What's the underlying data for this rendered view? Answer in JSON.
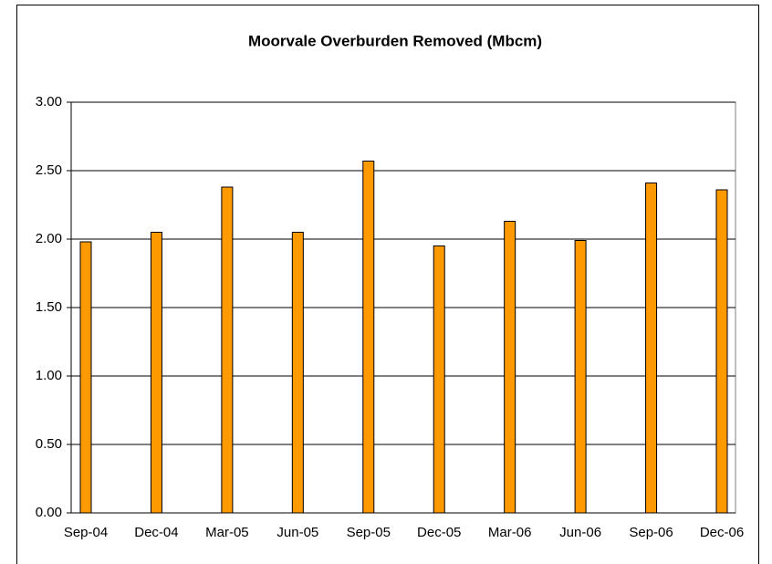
{
  "chart_data": {
    "type": "bar",
    "title": "Moorvale Overburden Removed (Mbcm)",
    "categories": [
      "Sep-04",
      "Dec-04",
      "Mar-05",
      "Jun-05",
      "Sep-05",
      "Dec-05",
      "Mar-06",
      "Jun-06",
      "Sep-06",
      "Dec-06"
    ],
    "values": [
      1.98,
      2.05,
      2.38,
      2.05,
      2.57,
      1.95,
      2.13,
      1.99,
      2.41,
      2.36
    ],
    "color": "#ff9900",
    "ylim": [
      0,
      3
    ],
    "yticks": [
      {
        "value": 0,
        "label": "0.00"
      },
      {
        "value": 0.5,
        "label": "0.50"
      },
      {
        "value": 1,
        "label": "1.00"
      },
      {
        "value": 1.5,
        "label": "1.50"
      },
      {
        "value": 2,
        "label": "2.00"
      },
      {
        "value": 2.5,
        "label": "2.50"
      },
      {
        "value": 3,
        "label": "3.00"
      }
    ],
    "grid": true
  }
}
